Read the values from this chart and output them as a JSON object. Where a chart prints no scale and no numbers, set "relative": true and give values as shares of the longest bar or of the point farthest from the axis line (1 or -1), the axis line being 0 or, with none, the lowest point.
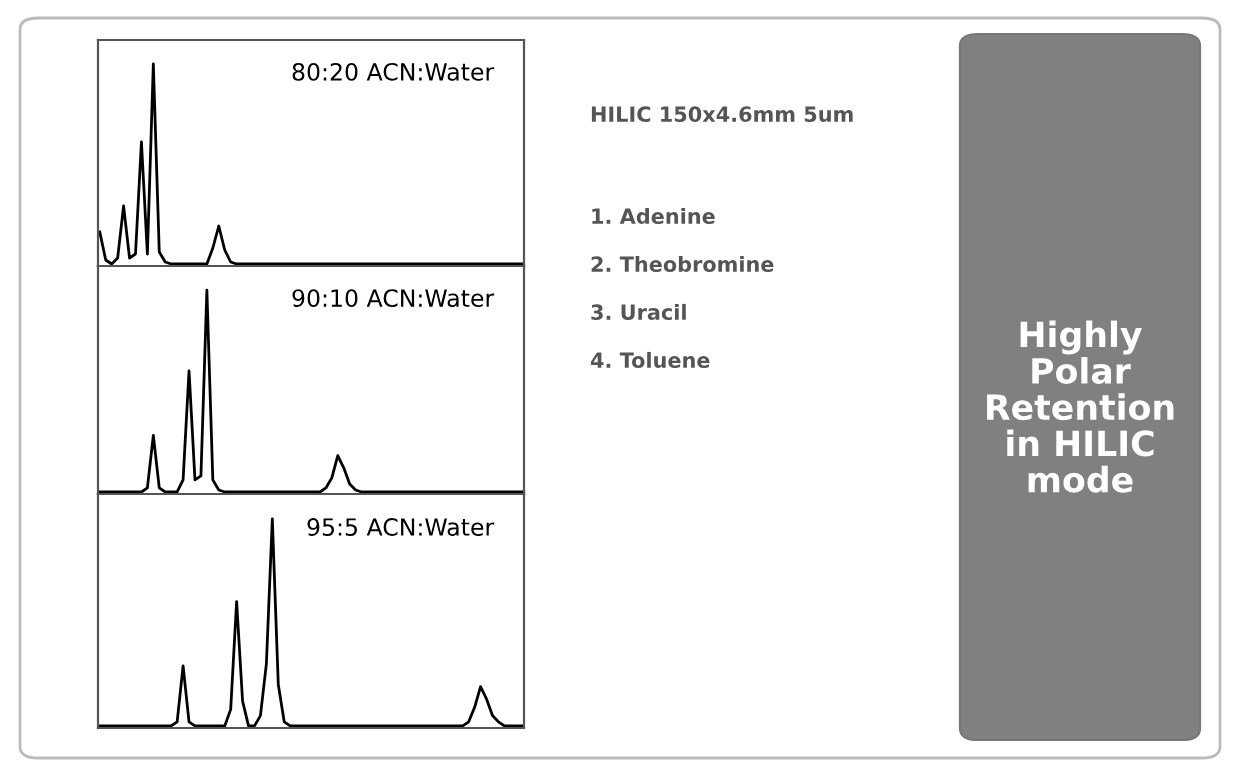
{
  "chart_data": [
    {
      "type": "line",
      "relative": true,
      "title": "80:20 ACN:Water",
      "grid": false,
      "legend": false,
      "categories": [
        null,
        null,
        null,
        null,
        null,
        null,
        null,
        null,
        null,
        null,
        null,
        null,
        null,
        null,
        null,
        null,
        null,
        null,
        null,
        null,
        null,
        null,
        null,
        null,
        null,
        null,
        null,
        null,
        null,
        null,
        null,
        null,
        null,
        null,
        null,
        null,
        null,
        null,
        null,
        null,
        null,
        null,
        null,
        null,
        null,
        null,
        null,
        null,
        null,
        null,
        null,
        null,
        null,
        null,
        null,
        null,
        null,
        null,
        null,
        null,
        null,
        null,
        null,
        null,
        null,
        null,
        null,
        null,
        null,
        null,
        null,
        null
      ],
      "series": [
        {
          "color": "#000000",
          "values": [
            0.16,
            0.02,
            0,
            0.03,
            0.29,
            0.03,
            0.05,
            0.61,
            0.05,
            1,
            0.06,
            0.01,
            0,
            0,
            0,
            0,
            0,
            0,
            0,
            0.08,
            0.19,
            0.07,
            0.01,
            0,
            0,
            0,
            0,
            0,
            0,
            0,
            0,
            0,
            0,
            0,
            0,
            0,
            0,
            0,
            0,
            0,
            0,
            0,
            0,
            0,
            0,
            0,
            0,
            0,
            0,
            0,
            0,
            0,
            0,
            0,
            0,
            0,
            0,
            0,
            0,
            0,
            0,
            0,
            0,
            0,
            0,
            0,
            0,
            0,
            0,
            0,
            0,
            0
          ]
        }
      ]
    },
    {
      "type": "line",
      "relative": true,
      "title": "90:10 ACN:Water",
      "grid": false,
      "legend": false,
      "categories": [
        null,
        null,
        null,
        null,
        null,
        null,
        null,
        null,
        null,
        null,
        null,
        null,
        null,
        null,
        null,
        null,
        null,
        null,
        null,
        null,
        null,
        null,
        null,
        null,
        null,
        null,
        null,
        null,
        null,
        null,
        null,
        null,
        null,
        null,
        null,
        null,
        null,
        null,
        null,
        null,
        null,
        null,
        null,
        null,
        null,
        null,
        null,
        null,
        null,
        null,
        null,
        null,
        null,
        null,
        null,
        null,
        null,
        null,
        null,
        null,
        null,
        null,
        null,
        null,
        null,
        null,
        null,
        null,
        null,
        null,
        null,
        null
      ],
      "series": [
        {
          "color": "#000000",
          "values": [
            0,
            0,
            0,
            0,
            0,
            0,
            0,
            0,
            0.02,
            0.28,
            0.02,
            0,
            0,
            0,
            0.06,
            0.6,
            0.06,
            0.08,
            1,
            0.06,
            0.01,
            0,
            0,
            0,
            0,
            0,
            0,
            0,
            0,
            0,
            0,
            0,
            0,
            0,
            0,
            0,
            0,
            0,
            0.02,
            0.07,
            0.18,
            0.12,
            0.04,
            0.01,
            0,
            0,
            0,
            0,
            0,
            0,
            0,
            0,
            0,
            0,
            0,
            0,
            0,
            0,
            0,
            0,
            0,
            0,
            0,
            0,
            0,
            0,
            0,
            0,
            0,
            0,
            0,
            0
          ]
        }
      ]
    },
    {
      "type": "line",
      "relative": true,
      "title": "95:5 ACN:Water",
      "grid": false,
      "legend": false,
      "categories": [
        null,
        null,
        null,
        null,
        null,
        null,
        null,
        null,
        null,
        null,
        null,
        null,
        null,
        null,
        null,
        null,
        null,
        null,
        null,
        null,
        null,
        null,
        null,
        null,
        null,
        null,
        null,
        null,
        null,
        null,
        null,
        null,
        null,
        null,
        null,
        null,
        null,
        null,
        null,
        null,
        null,
        null,
        null,
        null,
        null,
        null,
        null,
        null,
        null,
        null,
        null,
        null,
        null,
        null,
        null,
        null,
        null,
        null,
        null,
        null,
        null,
        null,
        null,
        null,
        null,
        null,
        null,
        null,
        null,
        null,
        null,
        null
      ],
      "series": [
        {
          "color": "#000000",
          "values": [
            0,
            0,
            0,
            0,
            0,
            0,
            0,
            0,
            0,
            0,
            0,
            0,
            0,
            0.02,
            0.29,
            0.02,
            0,
            0,
            0,
            0,
            0,
            0,
            0.08,
            0.6,
            0.12,
            0,
            0,
            0.05,
            0.3,
            1,
            0.2,
            0.02,
            0,
            0,
            0,
            0,
            0,
            0,
            0,
            0,
            0,
            0,
            0,
            0,
            0,
            0,
            0,
            0,
            0,
            0,
            0,
            0,
            0,
            0,
            0,
            0,
            0,
            0,
            0,
            0,
            0,
            0,
            0.02,
            0.09,
            0.19,
            0.13,
            0.05,
            0.02,
            0,
            0,
            0,
            0
          ]
        }
      ]
    },
    {
      "type": "other",
      "title": "HILIC 150x4.6mm 5um",
      "annotations": [
        "1. Adenine",
        "2. Theobromine",
        "3. Uracil",
        "4. Toluene"
      ]
    },
    {
      "type": "other",
      "title": "Highly Polar Retention in HILIC mode",
      "color": "#808080"
    }
  ]
}
